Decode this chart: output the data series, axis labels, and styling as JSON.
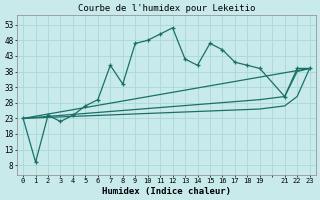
{
  "title": "Courbe de l'humidex pour Lekeitio",
  "xlabel": "Humidex (Indice chaleur)",
  "bg_color": "#c8eaea",
  "grid_color": "#a8d8d8",
  "line_color": "#1a7068",
  "xlim": [
    -0.5,
    23.5
  ],
  "ylim": [
    5,
    56
  ],
  "yticks": [
    8,
    13,
    18,
    23,
    28,
    33,
    38,
    43,
    48,
    53
  ],
  "xtick_labels": [
    "0",
    "1",
    "2",
    "3",
    "4",
    "5",
    "6",
    "7",
    "8",
    "9",
    "10",
    "11",
    "12",
    "13",
    "14",
    "15",
    "16",
    "17",
    "18",
    "19",
    "",
    "21",
    "22",
    "23"
  ],
  "main_x": [
    0,
    1,
    2,
    3,
    4,
    5,
    6,
    7,
    8,
    9,
    10,
    11,
    12,
    13,
    14,
    15,
    16,
    17,
    18,
    19,
    21,
    22,
    23
  ],
  "main_y": [
    23,
    9,
    24,
    22,
    24,
    27,
    29,
    40,
    34,
    47,
    48,
    50,
    52,
    42,
    40,
    47,
    45,
    41,
    40,
    39,
    30,
    39,
    39
  ],
  "line2_x": [
    0,
    23
  ],
  "line2_y": [
    23,
    39
  ],
  "line3_x": [
    0,
    19,
    21,
    22,
    23
  ],
  "line3_y": [
    23,
    29,
    30,
    38,
    39
  ],
  "line4_x": [
    0,
    19,
    21,
    22,
    23
  ],
  "line4_y": [
    23,
    26,
    27,
    30,
    39
  ]
}
